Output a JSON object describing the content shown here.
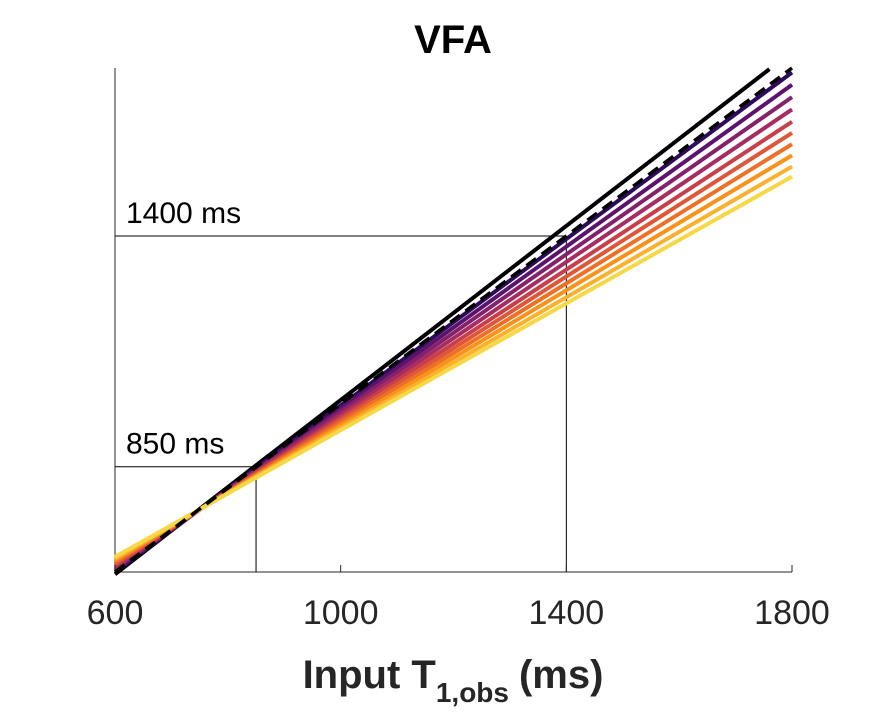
{
  "chart_data": {
    "type": "line",
    "title": "VFA",
    "xlabel": {
      "main": "Input T",
      "subscript": "1,obs",
      "unit": "(ms)"
    },
    "xlim": [
      600,
      1800
    ],
    "ylim": [
      600,
      1500
    ],
    "xticks": [
      600,
      1000,
      1400,
      1800
    ],
    "xtick_labels": [
      "600",
      "1000",
      "1400",
      "1800"
    ],
    "y_axis_ticks_visible": false,
    "grid": false,
    "legend": "none",
    "series": [
      {
        "color": "#000004",
        "values": [
          [
            600,
            596
          ],
          [
            1760,
            1498
          ]
        ]
      },
      {
        "color": "#2d0a5c",
        "values": [
          [
            600,
            600
          ],
          [
            1800,
            1492
          ]
        ]
      },
      {
        "color": "#5c136e",
        "values": [
          [
            600,
            603
          ],
          [
            1800,
            1470
          ]
        ]
      },
      {
        "color": "#85216b",
        "values": [
          [
            600,
            606
          ],
          [
            1800,
            1448
          ]
        ]
      },
      {
        "color": "#a62c61",
        "values": [
          [
            600,
            609
          ],
          [
            1800,
            1426
          ]
        ]
      },
      {
        "color": "#c83f4a",
        "values": [
          [
            600,
            612
          ],
          [
            1800,
            1404
          ]
        ]
      },
      {
        "color": "#dd5738",
        "values": [
          [
            600,
            615
          ],
          [
            1800,
            1384
          ]
        ]
      },
      {
        "color": "#ee7026",
        "values": [
          [
            600,
            618
          ],
          [
            1800,
            1364
          ]
        ]
      },
      {
        "color": "#f8921a",
        "values": [
          [
            600,
            621
          ],
          [
            1800,
            1344
          ]
        ]
      },
      {
        "color": "#f9b12e",
        "values": [
          [
            600,
            624
          ],
          [
            1800,
            1324
          ]
        ]
      },
      {
        "color": "#f6d746",
        "values": [
          [
            600,
            627
          ],
          [
            1800,
            1306
          ]
        ]
      }
    ],
    "identity_line": {
      "style": "dashed",
      "color": "#000000",
      "values": [
        [
          600,
          600
        ],
        [
          1800,
          1500
        ]
      ]
    },
    "reference_lines": [
      {
        "label": "1400 ms",
        "x": 1400,
        "y": 1200
      },
      {
        "label": "850 ms",
        "x": 850,
        "y": 788
      }
    ]
  }
}
